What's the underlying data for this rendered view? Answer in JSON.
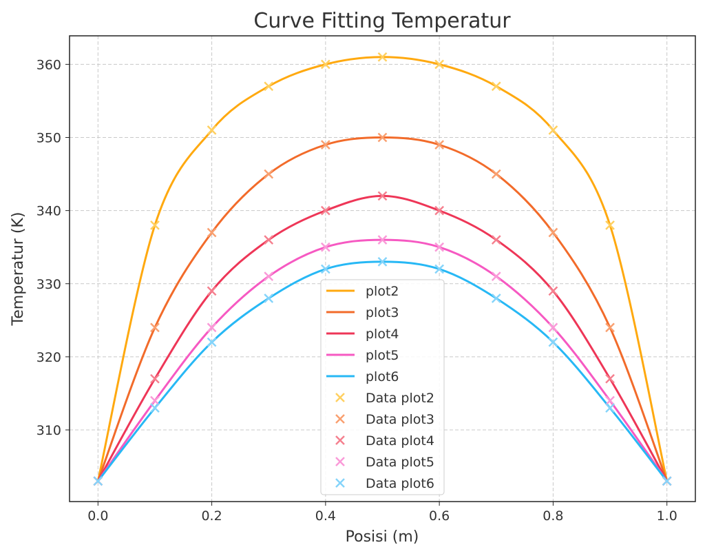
{
  "chart_data": {
    "type": "line",
    "title": "Curve Fitting Temperatur",
    "xlabel": "Posisi (m)",
    "ylabel": "Temperatur (K)",
    "xlim": [
      -0.05,
      1.05
    ],
    "ylim": [
      300.2,
      363.9
    ],
    "grid": true,
    "legend_placement": "lower-center",
    "xticks": [
      0.0,
      0.2,
      0.4,
      0.6,
      0.8,
      1.0
    ],
    "xtick_labels": [
      "0.0",
      "0.2",
      "0.4",
      "0.6",
      "0.8",
      "1.0"
    ],
    "yticks": [
      310,
      320,
      330,
      340,
      350,
      360
    ],
    "ytick_labels": [
      "310",
      "320",
      "330",
      "340",
      "350",
      "360"
    ],
    "x": [
      0.0,
      0.1,
      0.2,
      0.3,
      0.4,
      0.5,
      0.6,
      0.7,
      0.8,
      0.9,
      1.0
    ],
    "series": [
      {
        "name": "plot2",
        "data_name": "Data plot2",
        "color": "#ffa90f",
        "marker_color": "#ffd060",
        "values": [
          303,
          338,
          351,
          357,
          360,
          361,
          360,
          357,
          351,
          338,
          303
        ]
      },
      {
        "name": "plot3",
        "data_name": "Data plot3",
        "color": "#f26b2a",
        "marker_color": "#f9a070",
        "values": [
          303,
          324,
          337,
          345,
          349,
          350,
          349,
          345,
          337,
          324,
          303
        ]
      },
      {
        "name": "plot4",
        "data_name": "Data plot4",
        "color": "#ee3657",
        "marker_color": "#f5808f",
        "values": [
          303,
          317,
          329,
          336,
          340,
          342,
          340,
          336,
          329,
          317,
          303
        ]
      },
      {
        "name": "plot5",
        "data_name": "Data plot5",
        "color": "#f659c2",
        "marker_color": "#fa9ad8",
        "values": [
          303,
          314,
          324,
          331,
          335,
          336,
          335,
          331,
          324,
          314,
          303
        ]
      },
      {
        "name": "plot6",
        "data_name": "Data plot6",
        "color": "#27b8f5",
        "marker_color": "#85d4fa",
        "values": [
          303,
          313,
          322,
          328,
          332,
          333,
          332,
          328,
          322,
          313,
          303
        ]
      }
    ]
  }
}
